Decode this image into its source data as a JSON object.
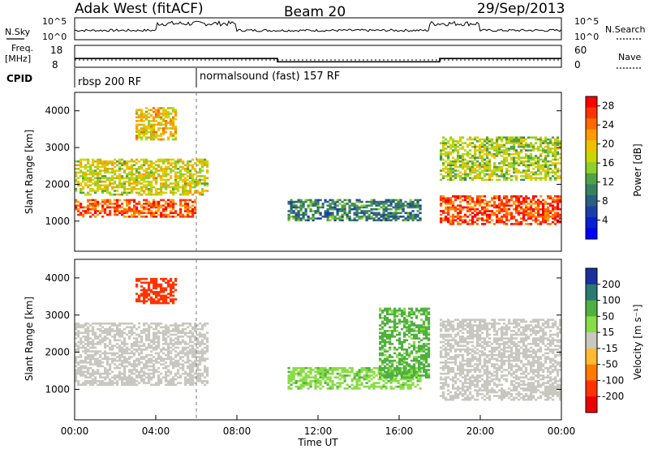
{
  "header": {
    "station": "Adak West (fitACF)",
    "beam": "Beam 20",
    "date": "29/Sep/2013"
  },
  "noise_panel": {
    "left_label": "N.Sky",
    "right_label": "N.Search",
    "ytick_top": "10^5",
    "ytick_bottom": "10^0"
  },
  "freq_panel": {
    "left_label_1": "Freq.",
    "left_label_2": "[MHz]",
    "ytick_top": "18",
    "ytick_bottom": "8",
    "right_tick_top": "60",
    "right_tick_bottom": "0",
    "right_label": "Nave"
  },
  "cpid": {
    "label": "CPID",
    "segments": [
      {
        "label": "rbsp 200 RF",
        "start_h": 0
      },
      {
        "label": "normalsound (fast) 157 RF",
        "start_h": 6
      }
    ]
  },
  "power_panel": {
    "ylabel": "Slant Range [km]",
    "yticks": [
      "4000",
      "3000",
      "2000",
      "1000"
    ],
    "cbar_label": "Power [dB]",
    "cbar_ticks": [
      "28",
      "24",
      "20",
      "16",
      "12",
      "8",
      "4"
    ],
    "cbar_colors": [
      "#ff0000",
      "#ff3300",
      "#ff6a00",
      "#ff9a00",
      "#f0c000",
      "#c8d800",
      "#8fcf2a",
      "#4fa046",
      "#3a8060",
      "#2a5f80",
      "#1a3fa8",
      "#0a1fd0",
      "#0000ff"
    ]
  },
  "velocity_panel": {
    "ylabel": "Slant Range [km]",
    "yticks": [
      "4000",
      "3000",
      "2000",
      "1000"
    ],
    "cbar_label": "Velocity [m s⁻¹]",
    "cbar_ticks": [
      "200",
      "100",
      "50",
      "15",
      "-15",
      "-50",
      "-100",
      "-200"
    ],
    "cbar_colors": [
      "#1a2fa0",
      "#2a7a72",
      "#4fb040",
      "#88dd44",
      "#c8c8c0",
      "#ffbb33",
      "#ff7a00",
      "#ff3300",
      "#ee0000"
    ]
  },
  "xaxis": {
    "ticks": [
      "00:00",
      "04:00",
      "08:00",
      "12:00",
      "16:00",
      "20:00",
      "00:00"
    ],
    "label": "Time UT"
  },
  "chart_data": {
    "type": "heatmap",
    "title": "Adak West (fitACF) Beam 20 29/Sep/2013",
    "xlabel": "Time UT",
    "ylabel": "Slant Range [km]",
    "xlim": [
      0,
      24
    ],
    "ylim": [
      180,
      4500
    ],
    "frequency_mhz": [
      {
        "t_start": 0,
        "t_end": 10,
        "value": 12
      },
      {
        "t_start": 10,
        "t_end": 18,
        "value": 10.5
      },
      {
        "t_start": 18,
        "t_end": 24,
        "value": 12
      }
    ],
    "power_features": [
      {
        "t_start": 0,
        "t_end": 6,
        "r_low": 1100,
        "r_high": 1600,
        "power_db": 26
      },
      {
        "t_start": 0,
        "t_end": 6.5,
        "r_low": 1700,
        "r_high": 2700,
        "power_db": 18
      },
      {
        "t_start": 3,
        "t_end": 5,
        "r_low": 3200,
        "r_high": 4100,
        "power_db": 20
      },
      {
        "t_start": 10.5,
        "t_end": 17,
        "r_low": 1000,
        "r_high": 1600,
        "power_db": 10
      },
      {
        "t_start": 18,
        "t_end": 24,
        "r_low": 900,
        "r_high": 1700,
        "power_db": 27
      },
      {
        "t_start": 18,
        "t_end": 24,
        "r_low": 2100,
        "r_high": 3300,
        "power_db": 16
      }
    ],
    "velocity_features": [
      {
        "t_start": 0,
        "t_end": 6.5,
        "r_low": 1100,
        "r_high": 2800,
        "velocity_ms": 0
      },
      {
        "t_start": 10.5,
        "t_end": 17,
        "r_low": 1000,
        "r_high": 1600,
        "velocity_ms": 40
      },
      {
        "t_start": 15,
        "t_end": 17.5,
        "r_low": 1300,
        "r_high": 3200,
        "velocity_ms": 60
      },
      {
        "t_start": 18,
        "t_end": 24,
        "r_low": 700,
        "r_high": 2900,
        "velocity_ms": 0
      },
      {
        "t_start": 3,
        "t_end": 5,
        "r_low": 3300,
        "r_high": 4000,
        "velocity_ms": -120
      }
    ]
  }
}
